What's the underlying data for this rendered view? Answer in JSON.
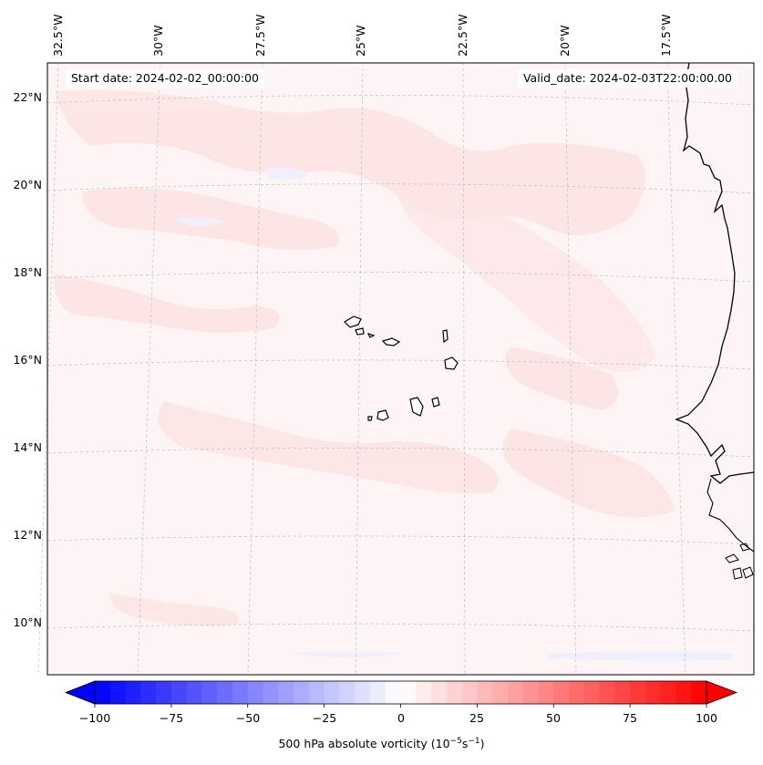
{
  "header": {
    "start_date": "Start date: 2024-02-02_00:00:00",
    "valid_date": "Valid_date: 2024-02-03T22:00:00.00"
  },
  "map": {
    "longitude_labels": [
      "32.5°W",
      "30°W",
      "27.5°W",
      "25°W",
      "22.5°W",
      "20°W",
      "17.5°W"
    ],
    "latitude_labels": [
      "22°N",
      "20°N",
      "18°N",
      "16°N",
      "14°N",
      "12°N",
      "10°N"
    ],
    "extent": {
      "lon_min": -33,
      "lon_max": -15.3,
      "lat_min": 9,
      "lat_max": 22.7
    },
    "gridlines": true,
    "coastline_color": "#000000",
    "features": [
      "Cape Verde islands",
      "West African coastline"
    ]
  },
  "colorbar": {
    "ticks": [
      "−100",
      "−75",
      "−50",
      "−25",
      "0",
      "25",
      "50",
      "75",
      "100"
    ],
    "min": -100,
    "max": 100,
    "step": 5,
    "colormap": "bwr",
    "extend": "both",
    "label": "500 hPa absolute vorticity (10",
    "label_exp1": "−5",
    "label_mid": "s",
    "label_exp2": "−1",
    "label_end": ")"
  }
}
